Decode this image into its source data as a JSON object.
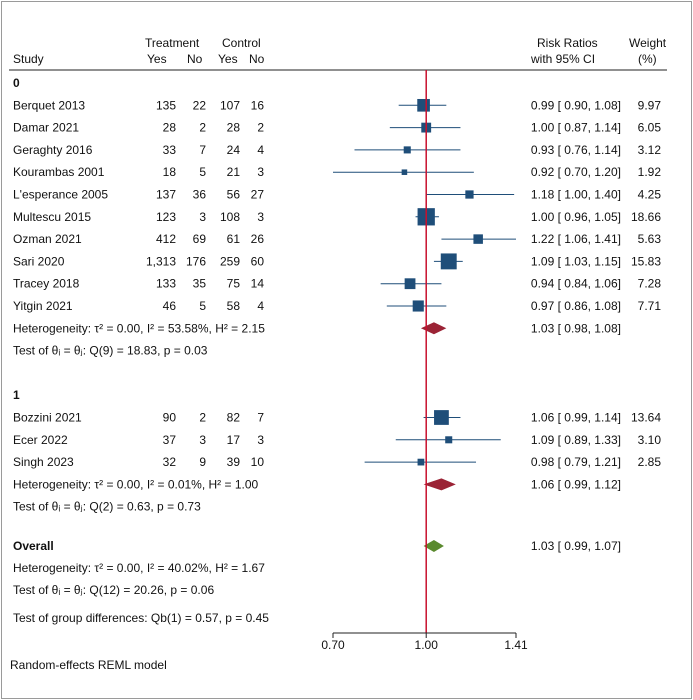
{
  "headers": {
    "study": "Study",
    "treatment": "Treatment",
    "control": "Control",
    "yes": "Yes",
    "no": "No",
    "effect_title": "Risk Ratios",
    "effect_subtitle": "with 95% CI",
    "weight_title": "Weight",
    "weight_subtitle": "(%)"
  },
  "footnote": "Random-effects REML model",
  "colors": {
    "study_marker": "#1f4e79",
    "subgroup_diamond": "#9b2335",
    "overall_diamond": "#5a8a2e",
    "null_line": "#c8102e",
    "ci_line": "#1f4e79"
  },
  "chart_data": {
    "type": "forest",
    "xlim": [
      0.7,
      1.41
    ],
    "log_scale": true,
    "null_value": 1.0,
    "xticks": [
      "0.70",
      "1.00",
      "1.41"
    ],
    "groups": [
      {
        "label": "0",
        "studies": [
          {
            "study": "Berquet 2013",
            "t_yes": "135",
            "t_no": "22",
            "c_yes": "107",
            "c_no": "16",
            "rr": 0.99,
            "lo": 0.9,
            "hi": 1.08,
            "rr_text": "0.99 [ 0.90, 1.08]",
            "weight": "9.97"
          },
          {
            "study": "Damar 2021",
            "t_yes": "28",
            "t_no": "2",
            "c_yes": "28",
            "c_no": "2",
            "rr": 1.0,
            "lo": 0.87,
            "hi": 1.14,
            "rr_text": "1.00 [ 0.87, 1.14]",
            "weight": "6.05"
          },
          {
            "study": "Geraghty 2016",
            "t_yes": "33",
            "t_no": "7",
            "c_yes": "24",
            "c_no": "4",
            "rr": 0.93,
            "lo": 0.76,
            "hi": 1.14,
            "rr_text": "0.93 [ 0.76, 1.14]",
            "weight": "3.12"
          },
          {
            "study": "Kourambas 2001",
            "t_yes": "18",
            "t_no": "5",
            "c_yes": "21",
            "c_no": "3",
            "rr": 0.92,
            "lo": 0.7,
            "hi": 1.2,
            "rr_text": "0.92 [ 0.70, 1.20]",
            "weight": "1.92"
          },
          {
            "study": "L'esperance 2005",
            "t_yes": "137",
            "t_no": "36",
            "c_yes": "56",
            "c_no": "27",
            "rr": 1.18,
            "lo": 1.0,
            "hi": 1.4,
            "rr_text": "1.18 [ 1.00, 1.40]",
            "weight": "4.25"
          },
          {
            "study": "Multescu 2015",
            "t_yes": "123",
            "t_no": "3",
            "c_yes": "108",
            "c_no": "3",
            "rr": 1.0,
            "lo": 0.96,
            "hi": 1.05,
            "rr_text": "1.00 [ 0.96, 1.05]",
            "weight": "18.66"
          },
          {
            "study": "Ozman 2021",
            "t_yes": "412",
            "t_no": "69",
            "c_yes": "61",
            "c_no": "26",
            "rr": 1.22,
            "lo": 1.06,
            "hi": 1.41,
            "rr_text": "1.22 [ 1.06, 1.41]",
            "weight": "5.63"
          },
          {
            "study": "Sari 2020",
            "t_yes": "1,313",
            "t_no": "176",
            "c_yes": "259",
            "c_no": "60",
            "rr": 1.09,
            "lo": 1.03,
            "hi": 1.15,
            "rr_text": "1.09 [ 1.03, 1.15]",
            "weight": "15.83"
          },
          {
            "study": "Tracey 2018",
            "t_yes": "133",
            "t_no": "35",
            "c_yes": "75",
            "c_no": "14",
            "rr": 0.94,
            "lo": 0.84,
            "hi": 1.06,
            "rr_text": "0.94 [ 0.84, 1.06]",
            "weight": "7.28"
          },
          {
            "study": "Yitgin 2021",
            "t_yes": "46",
            "t_no": "5",
            "c_yes": "58",
            "c_no": "4",
            "rr": 0.97,
            "lo": 0.86,
            "hi": 1.08,
            "rr_text": "0.97 [ 0.86, 1.08]",
            "weight": "7.71"
          }
        ],
        "pooled": {
          "rr": 1.03,
          "lo": 0.98,
          "hi": 1.08,
          "rr_text": "1.03 [ 0.98, 1.08]"
        },
        "heterogeneity": "Heterogeneity: τ² = 0.00, I² = 53.58%, H² = 2.15",
        "test": "Test of θᵢ = θⱼ: Q(9) = 18.83, p = 0.03"
      },
      {
        "label": "1",
        "studies": [
          {
            "study": "Bozzini 2021",
            "t_yes": "90",
            "t_no": "2",
            "c_yes": "82",
            "c_no": "7",
            "rr": 1.06,
            "lo": 0.99,
            "hi": 1.14,
            "rr_text": "1.06 [ 0.99, 1.14]",
            "weight": "13.64"
          },
          {
            "study": "Ecer 2022",
            "t_yes": "37",
            "t_no": "3",
            "c_yes": "17",
            "c_no": "3",
            "rr": 1.09,
            "lo": 0.89,
            "hi": 1.33,
            "rr_text": "1.09 [ 0.89, 1.33]",
            "weight": "3.10"
          },
          {
            "study": "Singh 2023",
            "t_yes": "32",
            "t_no": "9",
            "c_yes": "39",
            "c_no": "10",
            "rr": 0.98,
            "lo": 0.79,
            "hi": 1.21,
            "rr_text": "0.98 [ 0.79, 1.21]",
            "weight": "2.85"
          }
        ],
        "pooled": {
          "rr": 1.06,
          "lo": 0.99,
          "hi": 1.12,
          "rr_text": "1.06 [ 0.99, 1.12]"
        },
        "heterogeneity": "Heterogeneity: τ² = 0.00, I² = 0.01%, H² = 1.00",
        "test": "Test of θᵢ = θⱼ: Q(2) = 0.63, p = 0.73"
      }
    ],
    "overall": {
      "label": "Overall",
      "rr": 1.03,
      "lo": 0.99,
      "hi": 1.07,
      "rr_text": "1.03 [ 0.99, 1.07]",
      "heterogeneity": "Heterogeneity: τ² = 0.00, I² = 40.02%, H² = 1.67",
      "test": "Test of θᵢ = θⱼ: Q(12) = 20.26, p = 0.06",
      "group_test": "Test of group differences: Qb(1) = 0.57, p = 0.45"
    }
  }
}
